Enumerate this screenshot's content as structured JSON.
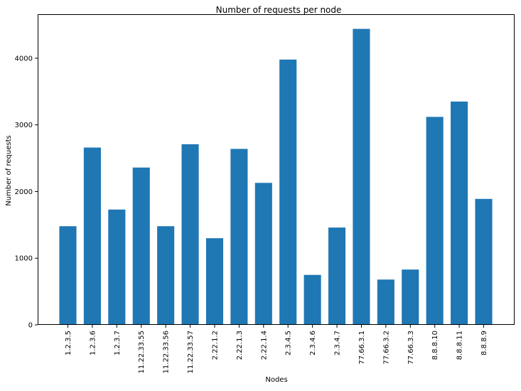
{
  "chart_data": {
    "type": "bar",
    "title": "Number of requests per node",
    "xlabel": "Nodes",
    "ylabel": "Number of requests",
    "ylim": [
      0,
      4660
    ],
    "yticks": [
      0,
      1000,
      2000,
      3000,
      4000
    ],
    "grid": false,
    "bar_color": "#1f77b4",
    "categories": [
      "1.2.3.5",
      "1.2.3.6",
      "1.2.3.7",
      "11.22.33.55",
      "11.22.33.56",
      "11.22.33.57",
      "2.22.1.2",
      "2.22.1.3",
      "2.22.1.4",
      "2.3.4.5",
      "2.3.4.6",
      "2.3.4.7",
      "77.66.3.1",
      "77.66.3.2",
      "77.66.3.3",
      "8.8.8.10",
      "8.8.8.11",
      "8.8.8.9"
    ],
    "values": [
      1480,
      2660,
      1730,
      2360,
      1480,
      2710,
      1300,
      2640,
      2130,
      3980,
      750,
      1460,
      4440,
      680,
      830,
      3120,
      3350,
      1890
    ]
  }
}
